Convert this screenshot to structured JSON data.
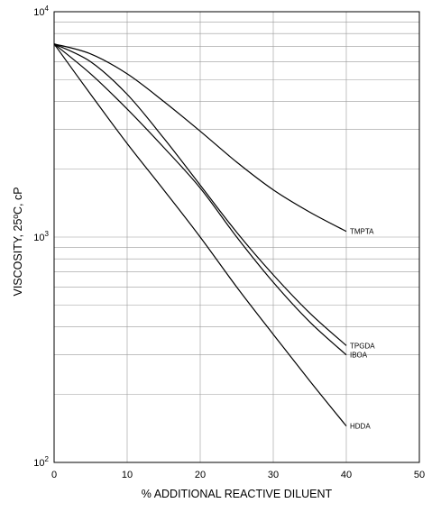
{
  "chart_data": {
    "type": "line",
    "xlabel": "% ADDITIONAL REACTIVE DILUENT",
    "ylabel": "VISCOSITY, 25ºC, cP",
    "xlim": [
      0,
      50
    ],
    "ylim": [
      100,
      10000
    ],
    "yscale": "log",
    "grid": true,
    "x_ticks": [
      "0",
      "10",
      "20",
      "30",
      "40",
      "50"
    ],
    "y_ticks": [
      {
        "base": "10",
        "exp": "4"
      },
      {
        "base": "10",
        "exp": "3"
      },
      {
        "base": "10",
        "exp": "2"
      }
    ],
    "series": [
      {
        "name": "TMPTA",
        "x": [
          0,
          5,
          10,
          15,
          20,
          25,
          30,
          35,
          40
        ],
        "y": [
          7200,
          6500,
          5300,
          4000,
          2950,
          2150,
          1620,
          1290,
          1060
        ]
      },
      {
        "name": "TPGDA",
        "x": [
          0,
          5,
          10,
          15,
          20,
          25,
          30,
          35,
          40
        ],
        "y": [
          7200,
          6000,
          4300,
          2750,
          1700,
          1050,
          680,
          460,
          330
        ]
      },
      {
        "name": "IBOA",
        "x": [
          0,
          5,
          10,
          15,
          20,
          25,
          30,
          35,
          40
        ],
        "y": [
          7200,
          5300,
          3700,
          2500,
          1650,
          1000,
          630,
          420,
          300
        ]
      },
      {
        "name": "HDDA",
        "x": [
          0,
          5,
          10,
          15,
          20,
          25,
          30,
          35,
          40
        ],
        "y": [
          7200,
          4300,
          2600,
          1620,
          1000,
          600,
          370,
          230,
          145
        ]
      }
    ]
  }
}
